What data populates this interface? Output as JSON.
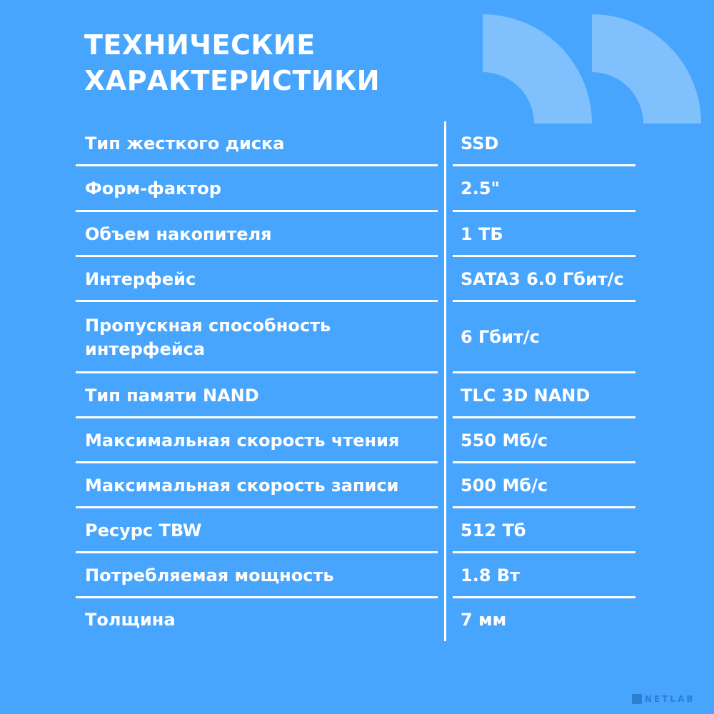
{
  "title": [
    "ТЕХНИЧЕСКИЕ",
    "ХАРАКТЕРИСТИКИ"
  ],
  "colors": {
    "background": "#48a5fd",
    "quote_shape": "#80c0fd",
    "text": "#ffffff"
  },
  "specs": [
    {
      "label": "Тип жесткого диска",
      "value": "SSD"
    },
    {
      "label": "Форм-фактор",
      "value": "2.5\""
    },
    {
      "label": "Объем накопителя",
      "value": "1 ТБ"
    },
    {
      "label": "Интерфейс",
      "value": "SATA3 6.0 Гбит/с"
    },
    {
      "label": "Пропускная способность\nинтерфейса",
      "value": "6 Гбит/с"
    },
    {
      "label": "Тип памяти NAND",
      "value": "TLC 3D NAND"
    },
    {
      "label": "Максимальная скорость чтения",
      "value": "550 Мб/с"
    },
    {
      "label": "Максимальная скорость записи",
      "value": "500 Мб/с"
    },
    {
      "label": "Ресурс TBW",
      "value": "512 Тб"
    },
    {
      "label": "Потребляемая мощность",
      "value": "1.8 Вт"
    },
    {
      "label": "Толщина",
      "value": "7 мм"
    }
  ],
  "logo": "NETLAB"
}
